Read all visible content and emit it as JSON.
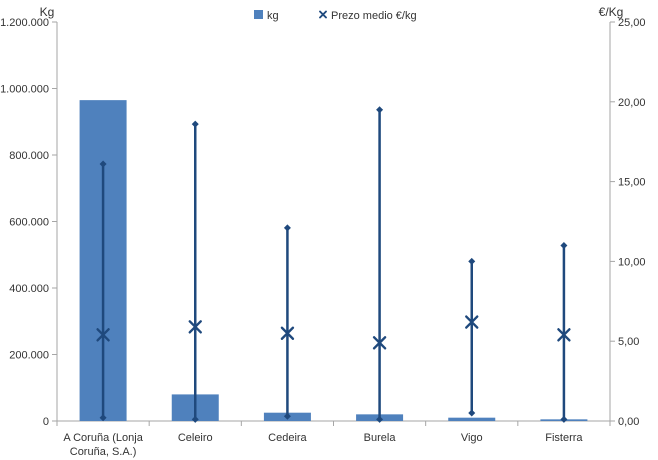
{
  "chart": {
    "left_axis_title": "Kg",
    "right_axis_title": "€/Kg",
    "legend": {
      "bar_label": "kg",
      "line_label": "Prezo medio €/kg"
    }
  },
  "colors": {
    "bar": "#4F81BD",
    "marker": "#1F497D",
    "axis": "#A6A6A6",
    "text": "#333333"
  },
  "chart_data": {
    "type": "bar",
    "title": "",
    "categories": [
      "A Coruña (Lonja Coruña, S.A.)",
      "Celeiro",
      "Cedeira",
      "Burela",
      "Vigo",
      "Fisterra"
    ],
    "category_lines": [
      [
        "A Coruña (Lonja",
        "Coruña, S.A.)"
      ],
      [
        "Celeiro"
      ],
      [
        "Cedeira"
      ],
      [
        "Burela"
      ],
      [
        "Vigo"
      ],
      [
        "Fisterra"
      ]
    ],
    "series": [
      {
        "name": "kg",
        "type": "bar",
        "yaxis": "left",
        "values": [
          965000,
          80000,
          25000,
          20000,
          10000,
          5000
        ]
      },
      {
        "name": "Prezo medio €/kg",
        "type": "x-marker-with-range",
        "yaxis": "right",
        "mean": [
          5.4,
          5.9,
          5.5,
          4.9,
          6.2,
          5.4
        ],
        "max": [
          16.1,
          18.6,
          12.1,
          19.5,
          10.0,
          11.0
        ],
        "min": [
          0.2,
          0.1,
          0.3,
          0.1,
          0.5,
          0.1
        ]
      }
    ],
    "xlabel": "",
    "ylabel_left": "Kg",
    "ylabel_right": "€/Kg",
    "ylim_left": [
      0,
      1200000
    ],
    "ylim_right": [
      0,
      25
    ],
    "left_tick_labels": [
      "0",
      "200.000",
      "400.000",
      "600.000",
      "800.000",
      "1.000.000",
      "1.200.000"
    ],
    "right_tick_labels": [
      "0,00",
      "5,00",
      "10,00",
      "15,00",
      "20,00",
      "25,00"
    ],
    "grid": false,
    "legend_position": "top-center"
  }
}
